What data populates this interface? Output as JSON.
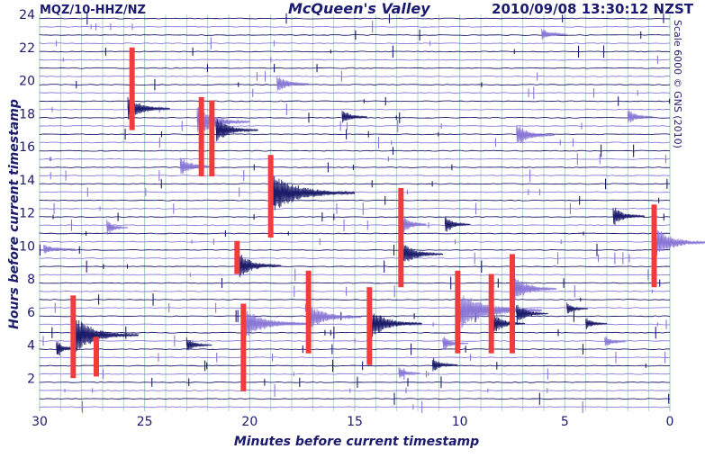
{
  "header": {
    "station": "MQZ/10-HHZ/NZ",
    "title": "McQueen's Valley",
    "timestamp": "2010/09/08 13:30:12 NZST"
  },
  "side_note": "Scale 6000 © GNS (2010)",
  "colors": {
    "trace_dark": "#1c1c6b",
    "trace_light": "#8a78d6",
    "clip": "#f03c3c",
    "grid_vertical": "#7fbf9a",
    "grid_horizontal": "#1c1c6b",
    "text": "#1a1a6e"
  },
  "chart_data": {
    "type": "seismogram helicorder",
    "xlabel": "Minutes before current timestamp",
    "ylabel": "Hours before current timestamp",
    "xlim": [
      30,
      0
    ],
    "ylim": [
      0,
      24
    ],
    "x_ticks": [
      30,
      25,
      20,
      15,
      10,
      5,
      0
    ],
    "y_ticks": [
      2,
      4,
      6,
      8,
      10,
      12,
      14,
      16,
      18,
      20,
      22,
      24
    ],
    "trace_count": 48,
    "trace_interval_minutes": 30,
    "trace_colors_alternate": [
      "dark",
      "light"
    ],
    "clipped_events": [
      {
        "minute": 25.6,
        "hours": [
          17,
          22
        ]
      },
      {
        "minute": 22.3,
        "hours": [
          14.2,
          19
        ]
      },
      {
        "minute": 21.8,
        "hours": [
          14.2,
          18.8
        ]
      },
      {
        "minute": 19,
        "hours": [
          10.5,
          15.5
        ]
      },
      {
        "minute": 28.4,
        "hours": [
          2,
          7
        ]
      },
      {
        "minute": 27.3,
        "hours": [
          2.1,
          4.5
        ]
      },
      {
        "minute": 20.6,
        "hours": [
          8.3,
          10.3
        ]
      },
      {
        "minute": 20.3,
        "hours": [
          1.2,
          6.5
        ]
      },
      {
        "minute": 17.2,
        "hours": [
          3.5,
          8.5
        ]
      },
      {
        "minute": 14.3,
        "hours": [
          2.8,
          7.5
        ]
      },
      {
        "minute": 12.8,
        "hours": [
          7.5,
          13.5
        ]
      },
      {
        "minute": 10.1,
        "hours": [
          3.5,
          8.5
        ]
      },
      {
        "minute": 8.5,
        "hours": [
          3.5,
          8.3
        ]
      },
      {
        "minute": 7.5,
        "hours": [
          3.5,
          9.5
        ]
      },
      {
        "minute": 0.75,
        "hours": [
          7.5,
          12.5
        ]
      }
    ],
    "events": [
      {
        "minute": 25.8,
        "hour": 18.3,
        "amp": 2.5,
        "dur": 2
      },
      {
        "minute": 22.5,
        "hour": 17.5,
        "amp": 3,
        "dur": 2.5
      },
      {
        "minute": 21.6,
        "hour": 17,
        "amp": 2.5,
        "dur": 2
      },
      {
        "minute": 23.3,
        "hour": 14.8,
        "amp": 2,
        "dur": 1.6
      },
      {
        "minute": 19,
        "hour": 13.2,
        "amp": 4,
        "dur": 4
      },
      {
        "minute": 18.7,
        "hour": 19.8,
        "amp": 1.8,
        "dur": 1.5
      },
      {
        "minute": 20.5,
        "hour": 8.8,
        "amp": 2.5,
        "dur": 2
      },
      {
        "minute": 20.3,
        "hour": 5.3,
        "amp": 3,
        "dur": 3
      },
      {
        "minute": 28.3,
        "hour": 4.6,
        "amp": 3.5,
        "dur": 3
      },
      {
        "minute": 26.8,
        "hour": 11.1,
        "amp": 1.5,
        "dur": 1
      },
      {
        "minute": 23,
        "hour": 4,
        "amp": 1.5,
        "dur": 1.2
      },
      {
        "minute": 17.2,
        "hour": 5.7,
        "amp": 2.5,
        "dur": 2.5
      },
      {
        "minute": 14.3,
        "hour": 5.3,
        "amp": 3,
        "dur": 2.5
      },
      {
        "minute": 12.8,
        "hour": 11.3,
        "amp": 2.5,
        "dur": 1.2
      },
      {
        "minute": 12.8,
        "hour": 9.5,
        "amp": 2.5,
        "dur": 2
      },
      {
        "minute": 10.1,
        "hour": 6.1,
        "amp": 4,
        "dur": 4
      },
      {
        "minute": 8.4,
        "hour": 5.3,
        "amp": 2,
        "dur": 1.5
      },
      {
        "minute": 7.4,
        "hour": 7.4,
        "amp": 2.5,
        "dur": 2
      },
      {
        "minute": 7.3,
        "hour": 5.9,
        "amp": 2,
        "dur": 1.5
      },
      {
        "minute": 0.7,
        "hour": 10.2,
        "amp": 3,
        "dur": 2.5
      },
      {
        "minute": 2.7,
        "hour": 11.8,
        "amp": 2,
        "dur": 1.5
      },
      {
        "minute": 7.3,
        "hour": 16.7,
        "amp": 2.2,
        "dur": 1.8
      },
      {
        "minute": 10.7,
        "hour": 11.3,
        "amp": 1.8,
        "dur": 1.2
      },
      {
        "minute": 3.1,
        "hour": 4.2,
        "amp": 1.2,
        "dur": 1
      },
      {
        "minute": 4.9,
        "hour": 6.2,
        "amp": 1.2,
        "dur": 1
      },
      {
        "minute": 2.0,
        "hour": 17.8,
        "amp": 1.5,
        "dur": 1.2
      },
      {
        "minute": 15.6,
        "hour": 17.8,
        "amp": 1.5,
        "dur": 1.2
      },
      {
        "minute": 6.1,
        "hour": 22.8,
        "amp": 1.2,
        "dur": 1.2
      },
      {
        "minute": 29.2,
        "hour": 3.8,
        "amp": 1.5,
        "dur": 1
      },
      {
        "minute": 10.8,
        "hour": 4.1,
        "amp": 1.5,
        "dur": 1.2
      },
      {
        "minute": 11.3,
        "hour": 2.8,
        "amp": 1.5,
        "dur": 1.2
      },
      {
        "minute": 12.9,
        "hour": 2.3,
        "amp": 1.2,
        "dur": 1
      },
      {
        "minute": 4.0,
        "hour": 5.3,
        "amp": 1.2,
        "dur": 1
      },
      {
        "minute": 29.8,
        "hour": 9.8,
        "amp": 1,
        "dur": 1.5
      }
    ]
  }
}
